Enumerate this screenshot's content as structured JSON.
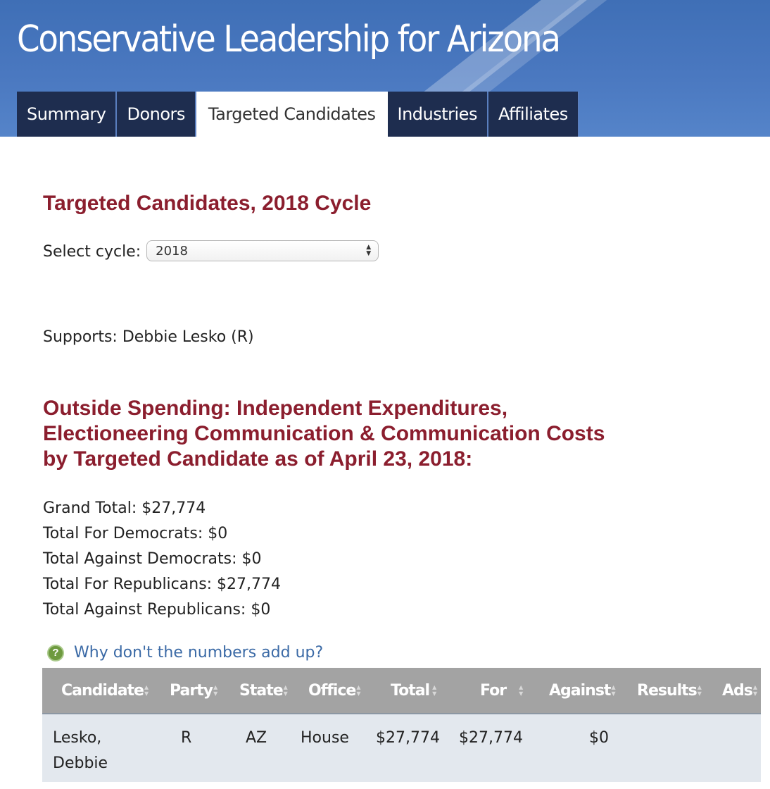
{
  "site_title": "Conservative Leadership for Arizona",
  "tabs": [
    {
      "label": "Summary"
    },
    {
      "label": "Donors"
    },
    {
      "label": "Targeted Candidates"
    },
    {
      "label": "Industries"
    },
    {
      "label": "Affiliates"
    }
  ],
  "page_title": "Targeted Candidates, 2018 Cycle",
  "cycle": {
    "label": "Select cycle:",
    "value": "2018"
  },
  "supports": "Supports: Debbie Lesko (R)",
  "spending_title": {
    "line1": "Outside Spending: Independent Expenditures,",
    "line2": "Electioneering Communication & Communication Costs",
    "line3": "by Targeted Candidate as of April 23, 2018:"
  },
  "totals": [
    "Grand Total: $27,774",
    "Total For Democrats: $0",
    "Total Against Democrats: $0",
    "Total For Republicans: $27,774",
    "Total Against Republicans: $0"
  ],
  "help_link": "Why don't the numbers add up?",
  "table": {
    "headers": [
      "Candidate",
      "Party",
      "State",
      "Office",
      "Total",
      "For",
      "Against",
      "Results",
      "Ads"
    ],
    "rows": [
      {
        "candidate_line1": "Lesko,",
        "candidate_line2": "Debbie",
        "party": "R",
        "state": "AZ",
        "office": "House",
        "total": "$27,774",
        "for": "$27,774",
        "against": "$0"
      }
    ]
  }
}
